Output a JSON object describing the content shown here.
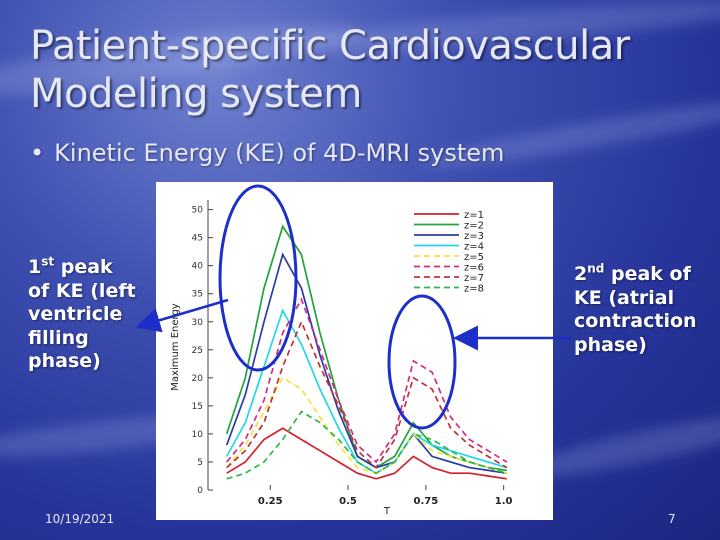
{
  "slide": {
    "title_line1": "Patient-specific Cardiovascular",
    "title_line2": "Modeling system",
    "bullet": "Kinetic Energy (KE) of 4D-MRI system",
    "left_note": {
      "ordinal_num": "1",
      "ordinal_sup": "st",
      "lines": [
        "peak",
        "of KE (left",
        "ventricle",
        "filling",
        "phase)"
      ]
    },
    "right_note": {
      "ordinal_num": "2",
      "ordinal_sup": "nd",
      "lines": [
        "peak of",
        "KE (atrial",
        "contraction",
        "phase)"
      ]
    },
    "date": "10/19/2021",
    "page_number": "7"
  },
  "colors": {
    "annotation_ring": "#1d2fc8",
    "arrow": "#1d2fc8",
    "series": [
      "#d4202a",
      "#22a53a",
      "#2b3ca8",
      "#22d8e8",
      "#f2e43a",
      "#d22a88",
      "#c33232",
      "#2fb84a"
    ]
  },
  "chart_data": {
    "type": "line",
    "title": "",
    "xlabel": "T",
    "ylabel": "Maximum Energy",
    "xlim": [
      0.05,
      1.12
    ],
    "ylim": [
      0,
      51
    ],
    "x_ticks": [
      "0.25",
      "0.5",
      "0.75",
      "1.0"
    ],
    "x_tick_values": [
      0.25,
      0.5,
      0.75,
      1.0
    ],
    "y_ticks": [
      "0",
      "5",
      "10",
      "15",
      "20",
      "25",
      "30",
      "35",
      "40",
      "45",
      "50"
    ],
    "y_tick_values": [
      0,
      5,
      10,
      15,
      20,
      25,
      30,
      35,
      40,
      45,
      50
    ],
    "legend_position": "top-right",
    "x": [
      0.11,
      0.17,
      0.23,
      0.29,
      0.35,
      0.41,
      0.47,
      0.53,
      0.59,
      0.65,
      0.71,
      0.77,
      0.83,
      0.89,
      0.95,
      1.01
    ],
    "series": [
      {
        "name": "z=1",
        "dash": "solid",
        "values": [
          3,
          5,
          9,
          11,
          9,
          7,
          5,
          3,
          2,
          3,
          6,
          4,
          3,
          3,
          2.5,
          2
        ]
      },
      {
        "name": "z=2",
        "dash": "solid",
        "values": [
          10,
          20,
          36,
          47,
          42,
          28,
          16,
          6,
          4,
          6,
          12,
          8,
          6,
          5,
          4,
          3.5
        ]
      },
      {
        "name": "z=3",
        "dash": "solid",
        "values": [
          8,
          17,
          30,
          42,
          36,
          24,
          14,
          6,
          4,
          5,
          10,
          6,
          5,
          4,
          3.5,
          3
        ]
      },
      {
        "name": "z=4",
        "dash": "solid",
        "values": [
          6,
          12,
          22,
          32,
          26,
          18,
          11,
          5,
          3,
          5,
          10,
          8,
          7,
          6,
          5,
          4
        ]
      },
      {
        "name": "z=5",
        "dash": "dashed",
        "values": [
          4,
          8,
          14,
          20,
          18,
          13,
          8,
          4,
          3,
          5,
          10,
          7,
          6,
          5,
          4,
          3
        ]
      },
      {
        "name": "z=6",
        "dash": "dashed",
        "values": [
          5,
          9,
          16,
          28,
          34,
          25,
          16,
          8,
          5,
          10,
          23,
          21,
          13,
          9,
          7,
          5
        ]
      },
      {
        "name": "z=7",
        "dash": "dashed",
        "values": [
          4,
          7,
          12,
          22,
          30,
          22,
          15,
          7,
          4,
          9,
          20,
          18,
          11,
          8,
          6,
          4
        ]
      },
      {
        "name": "z=8",
        "dash": "dashed",
        "values": [
          2,
          3,
          5,
          9,
          14,
          12,
          9,
          5,
          3,
          5,
          10,
          9,
          7,
          5,
          4,
          3
        ]
      }
    ]
  }
}
